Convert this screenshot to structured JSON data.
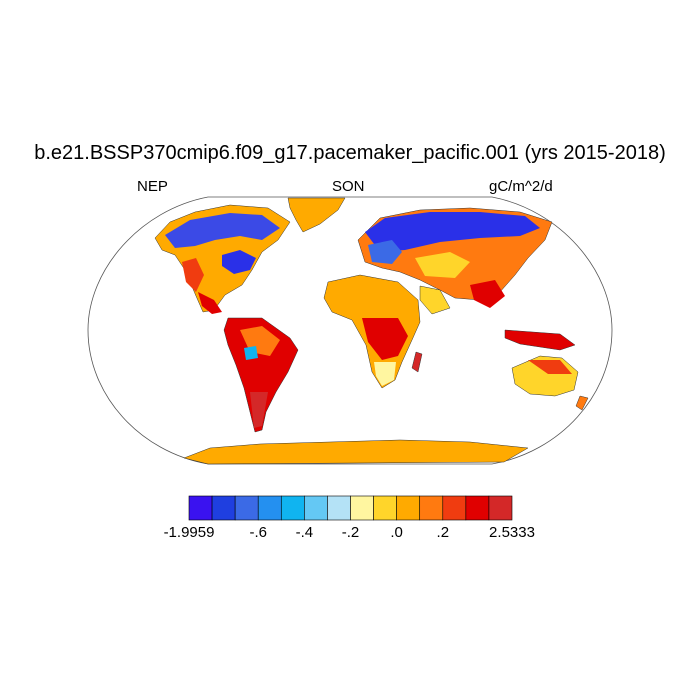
{
  "title": "b.e21.BSSP370cmip6.f09_g17.pacemaker_pacific.001 (yrs 2015-2018)",
  "left_label": "NEP",
  "center_label": "SON",
  "right_label": "gC/m^2/d",
  "colorbar": {
    "colors": [
      "#3a12f0",
      "#1f3fe0",
      "#3b6ae6",
      "#2490f0",
      "#10b4f0",
      "#64c8f4",
      "#b4e2f6",
      "#fff6a0",
      "#ffd52a",
      "#ffaa00",
      "#ff7a10",
      "#f03c10",
      "#e00000",
      "#d42828"
    ],
    "labels": [
      {
        "text": "-1.9959",
        "boundary": 0
      },
      {
        "text": "-.6",
        "boundary": 3
      },
      {
        "text": "-.4",
        "boundary": 5
      },
      {
        "text": "-.2",
        "boundary": 7
      },
      {
        "text": ".0",
        "boundary": 9
      },
      {
        "text": ".2",
        "boundary": 11
      },
      {
        "text": "2.5333",
        "boundary": 14
      }
    ]
  },
  "map": {
    "projection": "Robinson",
    "ocean_color": "#ffffff",
    "outline_color": "#555555"
  }
}
